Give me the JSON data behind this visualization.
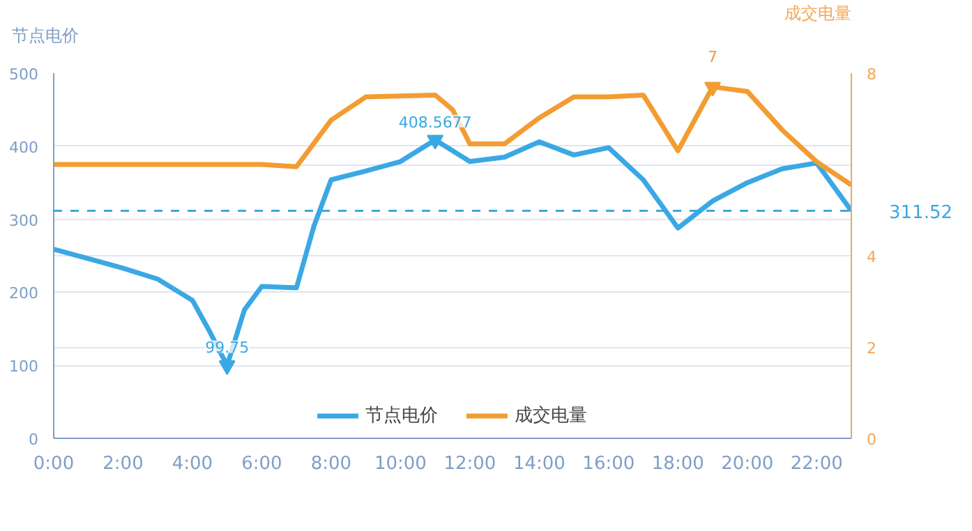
{
  "chart_data": {
    "type": "line",
    "ylabel": "节点电价",
    "y2label": "成交电量",
    "x": [
      0,
      1,
      2,
      3,
      4,
      4.5,
      5,
      5.5,
      6,
      7,
      7.5,
      8,
      9,
      10,
      11,
      12,
      13,
      14,
      15,
      16,
      17,
      18,
      19,
      20,
      21,
      22,
      23
    ],
    "series": [
      {
        "name": "节点电价",
        "color": "#3aa8e4",
        "values": [
          259,
          246,
          233,
          218,
          189,
          146,
          99.75,
          176,
          208,
          206,
          290,
          354,
          366,
          379,
          408.5677,
          379,
          385,
          406,
          388,
          398,
          354,
          288,
          325,
          350,
          369,
          377,
          311.52
        ]
      },
      {
        "name": "成交电量",
        "color": "#f39c32",
        "axis": "y2",
        "x": [
          0,
          1,
          2,
          3,
          4,
          5,
          6,
          7,
          8,
          9,
          10,
          11,
          11.5,
          12,
          13,
          14,
          15,
          16,
          17,
          18,
          19,
          20,
          21,
          22,
          23
        ],
        "values": [
          6,
          6,
          6,
          6,
          6,
          6,
          6,
          5.95,
          6.97,
          7.48,
          7.5,
          7.52,
          7.2,
          6.45,
          6.45,
          7.02,
          7.48,
          7.48,
          7.52,
          6.3,
          7.7,
          7.6,
          6.76,
          6.06,
          5.55
        ]
      }
    ],
    "xlim": [
      0,
      23
    ],
    "xticks": [
      {
        "value": 0,
        "label": "0:00"
      },
      {
        "value": 2,
        "label": "2:00"
      },
      {
        "value": 4,
        "label": "4:00"
      },
      {
        "value": 6,
        "label": "6:00"
      },
      {
        "value": 8,
        "label": "8:00"
      },
      {
        "value": 10,
        "label": "10:00"
      },
      {
        "value": 12,
        "label": "12:00"
      },
      {
        "value": 14,
        "label": "14:00"
      },
      {
        "value": 16,
        "label": "16:00"
      },
      {
        "value": 18,
        "label": "18:00"
      },
      {
        "value": 20,
        "label": "20:00"
      },
      {
        "value": 22,
        "label": "22:00"
      }
    ],
    "ylim": [
      0,
      500
    ],
    "yticks": [
      0,
      100,
      200,
      300,
      400,
      500
    ],
    "y2lim": [
      0,
      8
    ],
    "y2ticks": [
      0,
      2,
      4,
      {
        "value": 6,
        "label": null
      },
      8
    ],
    "ref_lines": [
      {
        "axis": "y",
        "value": 311.52,
        "label": "311.52",
        "color": "#3aa8e4",
        "line_style": "dashed"
      }
    ],
    "annotations": [
      {
        "text": "99.75",
        "x": 5,
        "y": 99.75
      },
      {
        "text": "408.5677",
        "x": 11,
        "y": 408.5677
      },
      {
        "text": "7",
        "x": 19,
        "y": 481
      }
    ],
    "grid": "y",
    "legend": "bottom",
    "marker": "none",
    "line_style": "solid"
  }
}
